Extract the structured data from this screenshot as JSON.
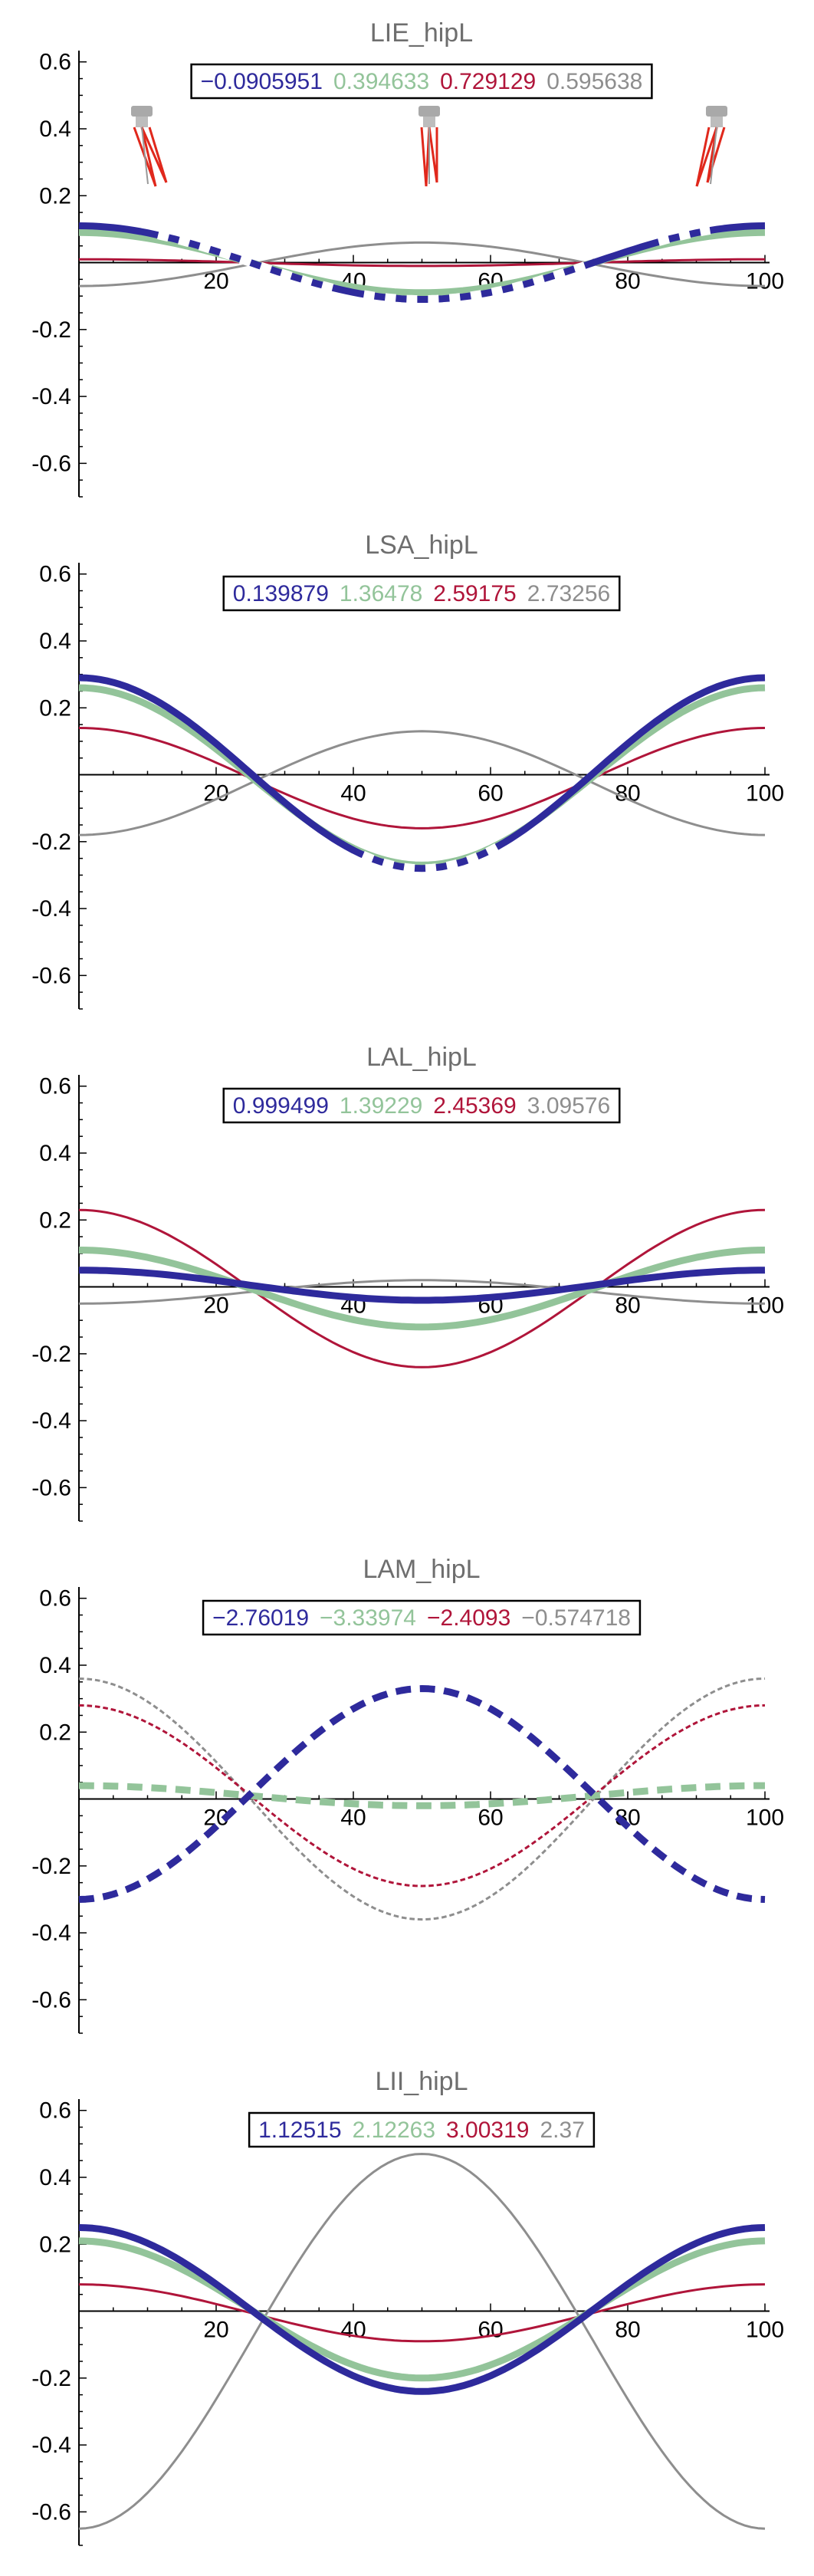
{
  "colors": {
    "blue": "#2e2a9c",
    "green": "#93c49a",
    "red": "#b0153a",
    "gray": "#8e8e8e"
  },
  "chart_data": [
    {
      "type": "line",
      "title": "LIE_hipL",
      "xlim": [
        0,
        100
      ],
      "ylim": [
        -0.7,
        0.62
      ],
      "x_ticks": [
        20,
        40,
        60,
        80,
        100
      ],
      "y_ticks": [
        0.6,
        0.4,
        0.2,
        -0.2,
        -0.4,
        -0.6
      ],
      "legend": [
        "-0.0905951",
        "0.394633",
        "0.729129",
        "0.595638"
      ],
      "icons": [
        "leg-pose-icon",
        "leg-pose-icon",
        "leg-pose-icon"
      ],
      "series": [
        {
          "color": "blue",
          "dash_ranges": [
            [
              10,
              38
            ],
            [
              40,
              75
            ],
            [
              83,
              92
            ]
          ],
          "values_x": [
            0,
            25,
            50,
            75,
            100
          ],
          "values_y": [
            0.11,
            0.0,
            -0.11,
            0.0,
            0.11
          ]
        },
        {
          "color": "green",
          "values_x": [
            0,
            25,
            50,
            75,
            100
          ],
          "values_y": [
            0.09,
            0.0,
            -0.09,
            0.0,
            0.09
          ]
        },
        {
          "color": "red",
          "values_x": [
            0,
            25,
            50,
            75,
            100
          ],
          "values_y": [
            0.01,
            0.0,
            -0.01,
            0.0,
            0.01
          ]
        },
        {
          "color": "gray",
          "values_x": [
            0,
            25,
            50,
            75,
            100
          ],
          "values_y": [
            -0.07,
            0.0,
            0.06,
            0.0,
            -0.07
          ]
        }
      ]
    },
    {
      "type": "line",
      "title": "LSA_hipL",
      "xlim": [
        0,
        100
      ],
      "ylim": [
        -0.7,
        0.62
      ],
      "x_ticks": [
        20,
        40,
        60,
        80,
        100
      ],
      "y_ticks": [
        0.6,
        0.4,
        0.2,
        -0.2,
        -0.4,
        -0.6
      ],
      "legend": [
        "0.139879",
        "1.36478",
        "2.59175",
        "2.73256"
      ],
      "series": [
        {
          "color": "blue",
          "dash_ranges": [
            [
              40,
              62
            ]
          ],
          "values_x": [
            0,
            25,
            50,
            75,
            100
          ],
          "values_y": [
            0.29,
            0.0,
            -0.28,
            0.0,
            0.29
          ]
        },
        {
          "color": "green",
          "values_x": [
            0,
            25,
            50,
            75,
            100
          ],
          "values_y": [
            0.26,
            0.0,
            -0.27,
            0.0,
            0.26
          ]
        },
        {
          "color": "red",
          "values_x": [
            0,
            25,
            50,
            75,
            100
          ],
          "values_y": [
            0.14,
            0.0,
            -0.16,
            0.0,
            0.14
          ]
        },
        {
          "color": "gray",
          "values_x": [
            0,
            25,
            50,
            75,
            100
          ],
          "values_y": [
            -0.18,
            0.0,
            0.13,
            0.0,
            -0.18
          ]
        }
      ]
    },
    {
      "type": "line",
      "title": "LAL_hipL",
      "xlim": [
        0,
        100
      ],
      "ylim": [
        -0.7,
        0.62
      ],
      "x_ticks": [
        20,
        40,
        60,
        80,
        100
      ],
      "y_ticks": [
        0.6,
        0.4,
        0.2,
        -0.2,
        -0.4,
        -0.6
      ],
      "legend": [
        "0.999499",
        "1.39229",
        "2.45369",
        "3.09576"
      ],
      "series": [
        {
          "color": "blue",
          "values_x": [
            0,
            25,
            50,
            75,
            100
          ],
          "values_y": [
            0.05,
            0.0,
            -0.04,
            0.0,
            0.05
          ]
        },
        {
          "color": "green",
          "values_x": [
            0,
            25,
            50,
            75,
            100
          ],
          "values_y": [
            0.11,
            0.0,
            -0.12,
            0.0,
            0.11
          ]
        },
        {
          "color": "red",
          "values_x": [
            0,
            25,
            50,
            75,
            100
          ],
          "values_y": [
            0.23,
            0.0,
            -0.24,
            0.0,
            0.23
          ]
        },
        {
          "color": "gray",
          "values_x": [
            0,
            25,
            50,
            75,
            100
          ],
          "values_y": [
            -0.05,
            0.0,
            0.02,
            0.0,
            -0.05
          ]
        }
      ]
    },
    {
      "type": "line",
      "title": "LAM_hipL",
      "xlim": [
        0,
        100
      ],
      "ylim": [
        -0.7,
        0.62
      ],
      "x_ticks": [
        20,
        40,
        60,
        80,
        100
      ],
      "y_ticks": [
        0.6,
        0.4,
        0.2,
        -0.2,
        -0.4,
        -0.6
      ],
      "legend": [
        "-2.76019",
        "-3.33974",
        "-2.4093",
        "-0.574718"
      ],
      "series": [
        {
          "color": "blue",
          "dashed": true,
          "values_x": [
            0,
            25,
            50,
            75,
            100
          ],
          "values_y": [
            -0.3,
            0.0,
            0.33,
            0.0,
            -0.3
          ]
        },
        {
          "color": "green",
          "dashed": true,
          "values_x": [
            0,
            25,
            50,
            75,
            100
          ],
          "values_y": [
            0.04,
            0.0,
            -0.02,
            0.0,
            0.04
          ]
        },
        {
          "color": "red",
          "dashed": true,
          "values_x": [
            0,
            25,
            50,
            75,
            100
          ],
          "values_y": [
            0.28,
            0.0,
            -0.26,
            0.0,
            0.28
          ]
        },
        {
          "color": "gray",
          "dashed": true,
          "values_x": [
            0,
            25,
            50,
            75,
            100
          ],
          "values_y": [
            0.36,
            0.0,
            -0.36,
            0.0,
            0.36
          ]
        }
      ]
    },
    {
      "type": "line",
      "title": "LII_hipL",
      "xlim": [
        0,
        100
      ],
      "ylim": [
        -0.7,
        0.62
      ],
      "x_ticks": [
        20,
        40,
        60,
        80,
        100
      ],
      "y_ticks": [
        0.6,
        0.4,
        0.2,
        -0.2,
        -0.4,
        -0.6
      ],
      "legend": [
        "1.12515",
        "2.12263",
        "3.00319",
        "2.37"
      ],
      "series": [
        {
          "color": "blue",
          "values_x": [
            0,
            25,
            50,
            75,
            100
          ],
          "values_y": [
            0.25,
            0.0,
            -0.24,
            0.0,
            0.25
          ]
        },
        {
          "color": "green",
          "values_x": [
            0,
            25,
            50,
            75,
            100
          ],
          "values_y": [
            0.21,
            0.0,
            -0.2,
            0.0,
            0.21
          ]
        },
        {
          "color": "red",
          "values_x": [
            0,
            25,
            50,
            75,
            100
          ],
          "values_y": [
            0.08,
            0.0,
            -0.09,
            0.0,
            0.08
          ]
        },
        {
          "color": "gray",
          "values_x": [
            0,
            25,
            50,
            75,
            100
          ],
          "values_y": [
            -0.65,
            0.0,
            0.47,
            0.0,
            -0.65
          ]
        }
      ]
    }
  ]
}
